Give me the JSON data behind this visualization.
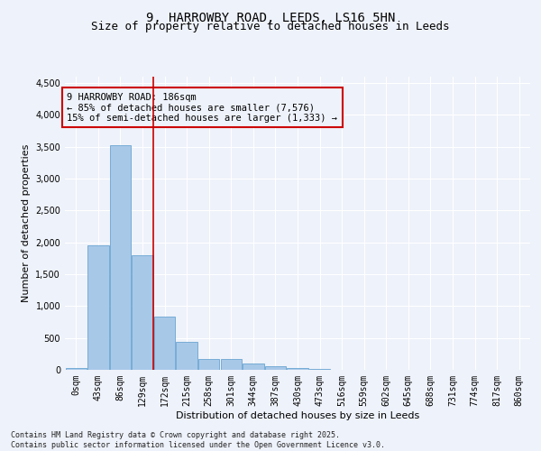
{
  "title_line1": "9, HARROWBY ROAD, LEEDS, LS16 5HN",
  "title_line2": "Size of property relative to detached houses in Leeds",
  "xlabel": "Distribution of detached houses by size in Leeds",
  "ylabel": "Number of detached properties",
  "categories": [
    "0sqm",
    "43sqm",
    "86sqm",
    "129sqm",
    "172sqm",
    "215sqm",
    "258sqm",
    "301sqm",
    "344sqm",
    "387sqm",
    "430sqm",
    "473sqm",
    "516sqm",
    "559sqm",
    "602sqm",
    "645sqm",
    "688sqm",
    "731sqm",
    "774sqm",
    "817sqm",
    "860sqm"
  ],
  "values": [
    30,
    1950,
    3520,
    1800,
    840,
    445,
    170,
    165,
    95,
    55,
    25,
    15,
    0,
    0,
    0,
    0,
    0,
    0,
    0,
    0,
    0
  ],
  "bar_color": "#a8c8e8",
  "bar_edge_color": "#5599cc",
  "vline_color": "#cc0000",
  "vline_x": 3.5,
  "annotation_text": "9 HARROWBY ROAD: 186sqm\n← 85% of detached houses are smaller (7,576)\n15% of semi-detached houses are larger (1,333) →",
  "annotation_box_color": "#cc0000",
  "ylim": [
    0,
    4600
  ],
  "yticks": [
    0,
    500,
    1000,
    1500,
    2000,
    2500,
    3000,
    3500,
    4000,
    4500
  ],
  "footnote": "Contains HM Land Registry data © Crown copyright and database right 2025.\nContains public sector information licensed under the Open Government Licence v3.0.",
  "background_color": "#eef2fa",
  "grid_color": "#ffffff",
  "title_fontsize": 10,
  "subtitle_fontsize": 9,
  "axis_label_fontsize": 8,
  "tick_fontsize": 7,
  "annotation_fontsize": 7.5,
  "footnote_fontsize": 6
}
